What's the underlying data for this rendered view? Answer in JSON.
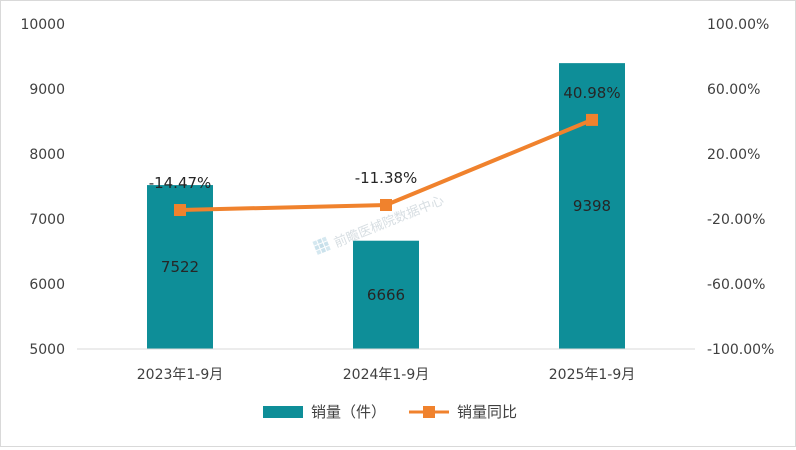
{
  "chart_data": {
    "type": "bar",
    "categories": [
      "2023年1-9月",
      "2024年1-9月",
      "2025年1-9月"
    ],
    "series": [
      {
        "name": "销量（件）",
        "type": "bar",
        "axis": "left",
        "color": "#0e8e98",
        "values": [
          7522,
          6666,
          9398
        ],
        "labels": [
          "7522",
          "6666",
          "9398"
        ]
      },
      {
        "name": "销量同比",
        "type": "line",
        "axis": "right",
        "color": "#f0822d",
        "values": [
          -14.47,
          -11.38,
          40.98
        ],
        "labels": [
          "-14.47%",
          "-11.38%",
          "40.98%"
        ]
      }
    ],
    "y_left": {
      "range": [
        5000,
        10000
      ],
      "ticks": [
        5000,
        6000,
        7000,
        8000,
        9000,
        10000
      ],
      "tick_labels": [
        "5000",
        "6000",
        "7000",
        "8000",
        "9000",
        "10000"
      ]
    },
    "y_right": {
      "range": [
        -100,
        100
      ],
      "ticks": [
        -100,
        -60,
        -20,
        20,
        60,
        100
      ],
      "tick_labels": [
        "-100.00%",
        "-60.00%",
        "-20.00%",
        "20.00%",
        "60.00%",
        "100.00%"
      ]
    },
    "grid": false,
    "legend_position": "bottom"
  },
  "watermark": {
    "text": "前瞻医械院数据中心"
  }
}
